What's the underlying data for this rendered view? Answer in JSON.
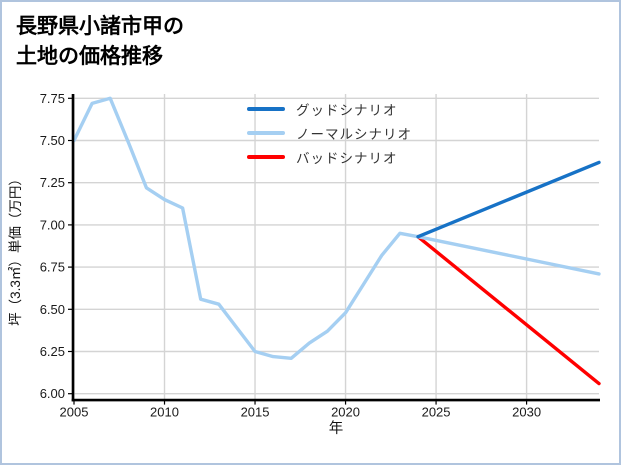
{
  "title": {
    "line1": "長野県小諸市甲の",
    "line2": "土地の価格推移"
  },
  "chart_data": {
    "type": "line",
    "title": "長野県小諸市甲の土地の価格推移",
    "xlabel": "年",
    "ylabel": "坪（3.3㎡）単価（万円）",
    "grid": true,
    "legend_position": "upper center, frameless",
    "xlim": [
      2005,
      2034
    ],
    "ylim": [
      6.0,
      7.75
    ],
    "x_ticks": [
      2005,
      2010,
      2015,
      2020,
      2025,
      2030
    ],
    "y_ticks": [
      6.0,
      6.25,
      6.5,
      6.75,
      7.0,
      7.25,
      7.5,
      7.75
    ],
    "y_tick_labels": [
      "6.00",
      "6.25",
      "6.50",
      "6.75",
      "7.00",
      "7.25",
      "7.50",
      "7.75"
    ],
    "colors": {
      "good": "#1772c6",
      "normal": "#a5cff2",
      "bad": "#ff0000",
      "gridline": "#d4d4d4",
      "axis": "#000000"
    },
    "series": [
      {
        "id": "good",
        "legend": "グッドシナリオ",
        "color": "#1772c6",
        "x": [
          2024,
          2034
        ],
        "y": [
          6.93,
          7.37
        ]
      },
      {
        "id": "normal",
        "legend": "ノーマルシナリオ",
        "color": "#a5cff2",
        "x": [
          2005,
          2006,
          2007,
          2008,
          2009,
          2010,
          2011,
          2012,
          2013,
          2014,
          2015,
          2016,
          2017,
          2018,
          2019,
          2020,
          2021,
          2022,
          2023,
          2024,
          2034
        ],
        "y": [
          7.5,
          7.72,
          7.75,
          7.49,
          7.22,
          7.15,
          7.1,
          6.56,
          6.53,
          6.39,
          6.25,
          6.22,
          6.21,
          6.3,
          6.37,
          6.48,
          6.65,
          6.82,
          6.95,
          6.93,
          6.71
        ]
      },
      {
        "id": "bad",
        "legend": "バッドシナリオ",
        "color": "#ff0000",
        "x": [
          2024,
          2034
        ],
        "y": [
          6.93,
          6.06
        ]
      }
    ]
  }
}
